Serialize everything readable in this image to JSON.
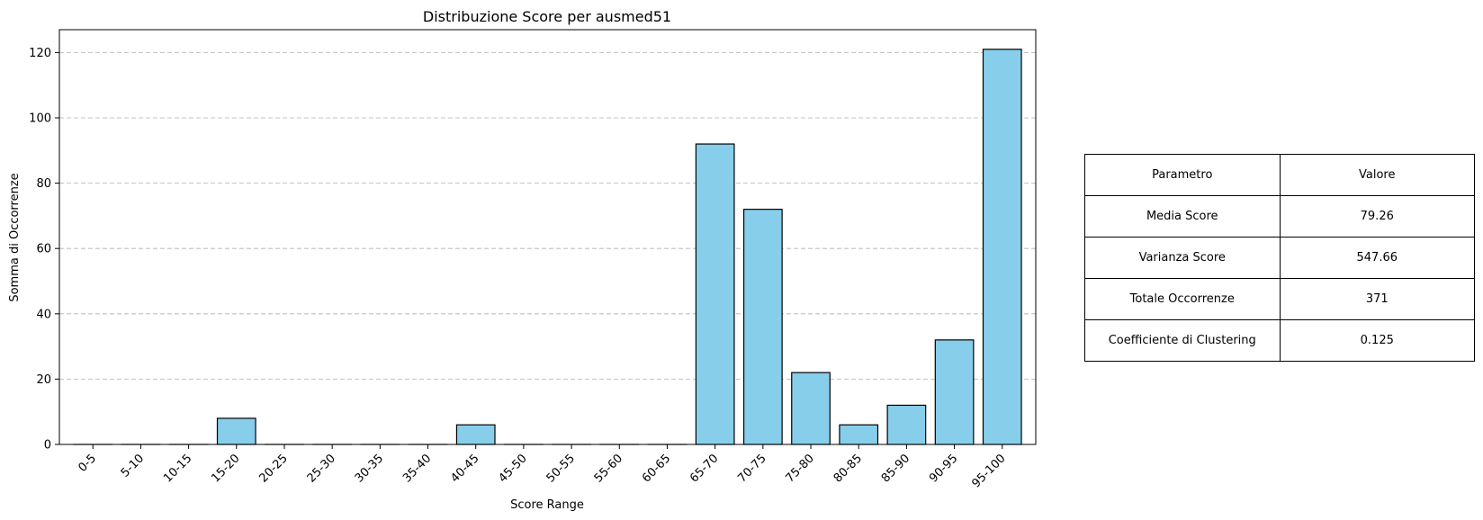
{
  "chart_data": {
    "type": "bar",
    "title": "Distribuzione Score per ausmed51",
    "xlabel": "Score Range",
    "ylabel": "Somma di Occorrenze",
    "categories": [
      "0-5",
      "5-10",
      "10-15",
      "15-20",
      "20-25",
      "25-30",
      "30-35",
      "35-40",
      "40-45",
      "45-50",
      "50-55",
      "55-60",
      "60-65",
      "65-70",
      "70-75",
      "75-80",
      "80-85",
      "85-90",
      "90-95",
      "95-100"
    ],
    "values": [
      0,
      0,
      0,
      8,
      0,
      0,
      0,
      0,
      6,
      0,
      0,
      0,
      0,
      92,
      72,
      22,
      6,
      12,
      32,
      121
    ],
    "ylim": [
      0,
      127
    ],
    "yticks": [
      0,
      20,
      40,
      60,
      80,
      100,
      120
    ],
    "grid": "y-dashed",
    "bar_color": "#87ceeb",
    "bar_edge_color": "#000000",
    "xtick_rotation": 45
  },
  "table": {
    "header": [
      "Parametro",
      "Valore"
    ],
    "rows": [
      [
        "Media Score",
        "79.26"
      ],
      [
        "Varianza Score",
        "547.66"
      ],
      [
        "Totale Occorrenze",
        "371"
      ],
      [
        "Coefficiente di Clustering",
        "0.125"
      ]
    ]
  }
}
